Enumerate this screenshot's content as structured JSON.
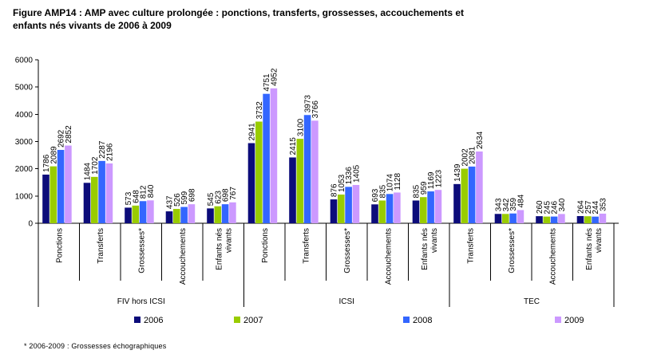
{
  "title_line1": "Figure AMP14 : AMP avec culture prolongée : ponctions, transferts, grossesses, accouchements et",
  "title_line2": "enfants nés vivants de 2006 à 2009",
  "footnote": "* 2006-2009 : Grossesses échographiques",
  "colors": {
    "2006": "#0c0c7a",
    "2007": "#99cc00",
    "2008": "#3366ff",
    "2009": "#cc99ff"
  },
  "chart_data": {
    "type": "bar",
    "ylim": [
      0,
      6000
    ],
    "yticks": [
      0,
      1000,
      2000,
      3000,
      4000,
      5000,
      6000
    ],
    "grid": false,
    "legend_position": "bottom",
    "series_names": [
      "2006",
      "2007",
      "2008",
      "2009"
    ],
    "groups": [
      {
        "label": "FIV hors ICSI",
        "categories": [
          {
            "label": "Ponctions",
            "values": [
              1786,
              2089,
              2692,
              2852
            ]
          },
          {
            "label": "Transferts",
            "values": [
              1484,
              1702,
              2287,
              2196
            ]
          },
          {
            "label": "Grossesses*",
            "values": [
              573,
              648,
              812,
              840
            ]
          },
          {
            "label": "Accouchements",
            "values": [
              437,
              526,
              599,
              698
            ]
          },
          {
            "label": "Enfants nés vivants",
            "values": [
              545,
              623,
              698,
              767
            ]
          }
        ]
      },
      {
        "label": "ICSI",
        "categories": [
          {
            "label": "Ponctions",
            "values": [
              2941,
              3732,
              4751,
              4952
            ]
          },
          {
            "label": "Transferts",
            "values": [
              2415,
              3100,
              3973,
              3766
            ]
          },
          {
            "label": "Grossesses*",
            "values": [
              876,
              1053,
              1336,
              1405
            ]
          },
          {
            "label": "Accouchements",
            "values": [
              693,
              835,
              1074,
              1128
            ]
          },
          {
            "label": "Enfants nés vivants",
            "values": [
              835,
              959,
              1169,
              1223
            ]
          }
        ]
      },
      {
        "label": "TEC",
        "categories": [
          {
            "label": "Transferts",
            "values": [
              1439,
              2002,
              2081,
              2634
            ]
          },
          {
            "label": "Grossesses*",
            "values": [
              343,
              342,
              359,
              484
            ]
          },
          {
            "label": "Accouchements",
            "values": [
              260,
              245,
              246,
              340
            ]
          },
          {
            "label": "Enfants nés vivants",
            "values": [
              264,
              257,
              244,
              353
            ]
          }
        ]
      }
    ]
  }
}
